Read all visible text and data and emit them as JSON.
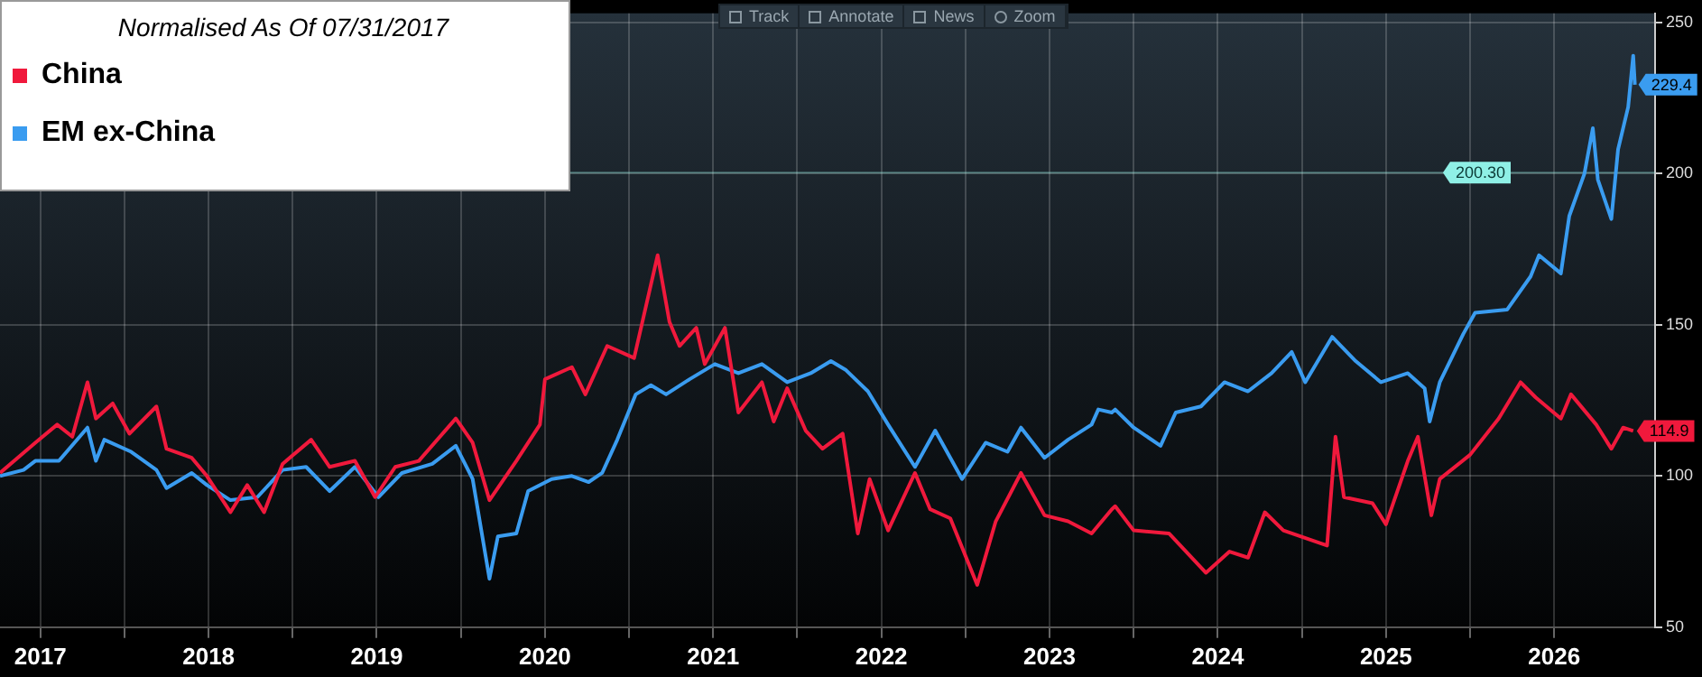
{
  "chart_data": {
    "type": "line",
    "legend_title": "Normalised As Of 07/31/2017",
    "legend": "top left",
    "grid": true,
    "marker": "none",
    "line_style": "solid",
    "xlim": [
      2017.26,
      2027.1
    ],
    "xticks": [
      {
        "value": 2017.5,
        "label": "2017"
      },
      {
        "value": 2018,
        "label": null
      },
      {
        "value": 2018.5,
        "label": "2018"
      },
      {
        "value": 2019,
        "label": null
      },
      {
        "value": 2019.5,
        "label": "2019"
      },
      {
        "value": 2020,
        "label": null
      },
      {
        "value": 2020.5,
        "label": "2020"
      },
      {
        "value": 2021,
        "label": null
      },
      {
        "value": 2021.5,
        "label": "2021"
      },
      {
        "value": 2022,
        "label": null
      },
      {
        "value": 2022.5,
        "label": "2022"
      },
      {
        "value": 2023,
        "label": null
      },
      {
        "value": 2023.5,
        "label": "2023"
      },
      {
        "value": 2024,
        "label": null
      },
      {
        "value": 2024.5,
        "label": "2024"
      },
      {
        "value": 2025,
        "label": null
      },
      {
        "value": 2025.5,
        "label": "2025"
      },
      {
        "value": 2026,
        "label": null
      },
      {
        "value": 2026.5,
        "label": "2026"
      }
    ],
    "ylim": [
      50,
      253
    ],
    "yticks": [
      50,
      100,
      150,
      200,
      250
    ],
    "ref_lines": [
      {
        "axis": "y",
        "value": 200.3,
        "label": "200.30",
        "color": "#8ff0e6"
      }
    ],
    "annotations": [
      "Track",
      "Annotate",
      "News",
      "Zoom",
      {
        "text": "229.4",
        "x": 2026.98,
        "y": 229.4
      },
      {
        "text": "114.9",
        "x": 2026.97,
        "y": 114.9
      }
    ],
    "series": [
      {
        "name": "China",
        "color": "#f0193c",
        "x": [
          2017.26,
          2017.47,
          2017.6,
          2017.69,
          2017.78,
          2017.83,
          2017.93,
          2018.03,
          2018.19,
          2018.25,
          2018.4,
          2018.49,
          2018.63,
          2018.73,
          2018.83,
          2018.94,
          2019.11,
          2019.22,
          2019.37,
          2019.49,
          2019.61,
          2019.75,
          2019.97,
          2020.07,
          2020.17,
          2020.33,
          2020.47,
          2020.5,
          2020.66,
          2020.74,
          2020.87,
          2021.03,
          2021.17,
          2021.24,
          2021.3,
          2021.4,
          2021.45,
          2021.57,
          2021.65,
          2021.79,
          2021.86,
          2021.94,
          2022.05,
          2022.15,
          2022.27,
          2022.36,
          2022.43,
          2022.54,
          2022.7,
          2022.79,
          2022.91,
          2023.07,
          2023.18,
          2023.33,
          2023.47,
          2023.61,
          2023.75,
          2023.87,
          2023.89,
          2024.0,
          2024.21,
          2024.43,
          2024.57,
          2024.68,
          2024.78,
          2024.89,
          2025.15,
          2025.2,
          2025.25,
          2025.42,
          2025.5,
          2025.63,
          2025.69,
          2025.77,
          2025.82,
          2026.0,
          2026.17,
          2026.3,
          2026.39,
          2026.54,
          2026.6,
          2026.75,
          2026.84,
          2026.91,
          2026.97
        ],
        "values": [
          101,
          111,
          117,
          113,
          131,
          119,
          124,
          114,
          123,
          109,
          106,
          100,
          88,
          97,
          88,
          104,
          112,
          103,
          105,
          93,
          103,
          105,
          119,
          111,
          92,
          105,
          117,
          132,
          136,
          127,
          143,
          139,
          173,
          151,
          143,
          149,
          137,
          149,
          121,
          131,
          118,
          129,
          115,
          109,
          114,
          81,
          99,
          82,
          101,
          89,
          86,
          64,
          85,
          101,
          87,
          85,
          81,
          89,
          90,
          82,
          81,
          68,
          75,
          73,
          88,
          82,
          77,
          113,
          93,
          91,
          84,
          105,
          113,
          87,
          99,
          107,
          119,
          131,
          126,
          119,
          127,
          117,
          109,
          116,
          114.9
        ]
      },
      {
        "name": "EM ex-China",
        "color": "#3a9cf0",
        "x": [
          2017.26,
          2017.4,
          2017.47,
          2017.61,
          2017.78,
          2017.83,
          2017.88,
          2018.04,
          2018.19,
          2018.25,
          2018.4,
          2018.49,
          2018.63,
          2018.79,
          2018.94,
          2019.08,
          2019.22,
          2019.37,
          2019.51,
          2019.65,
          2019.83,
          2019.97,
          2020.07,
          2020.17,
          2020.22,
          2020.33,
          2020.4,
          2020.54,
          2020.66,
          2020.76,
          2020.84,
          2020.93,
          2021.04,
          2021.13,
          2021.22,
          2021.36,
          2021.51,
          2021.65,
          2021.79,
          2021.94,
          2022.08,
          2022.2,
          2022.29,
          2022.42,
          2022.54,
          2022.7,
          2022.82,
          2022.98,
          2023.12,
          2023.25,
          2023.33,
          2023.47,
          2023.61,
          2023.75,
          2023.79,
          2023.87,
          2023.89,
          2024.0,
          2024.16,
          2024.25,
          2024.4,
          2024.54,
          2024.68,
          2024.82,
          2024.94,
          2025.02,
          2025.18,
          2025.32,
          2025.47,
          2025.63,
          2025.73,
          2025.76,
          2025.82,
          2025.96,
          2026.03,
          2026.22,
          2026.36,
          2026.41,
          2026.54,
          2026.59,
          2026.68,
          2026.73,
          2026.76,
          2026.84,
          2026.88,
          2026.94,
          2026.97,
          2026.98
        ],
        "values": [
          100,
          102,
          105,
          105,
          116,
          105,
          112,
          108,
          102,
          96,
          101,
          97,
          92,
          93,
          102,
          103,
          95,
          103,
          93,
          101,
          104,
          110,
          99,
          66,
          80,
          81,
          95,
          99,
          100,
          98,
          101,
          112,
          127,
          130,
          127,
          132,
          137,
          134,
          137,
          131,
          134,
          138,
          135,
          128,
          117,
          103,
          115,
          99,
          111,
          108,
          116,
          106,
          112,
          117,
          122,
          121,
          122,
          116,
          110,
          121,
          123,
          131,
          128,
          134,
          141,
          131,
          146,
          138,
          131,
          134,
          129,
          118,
          131,
          147,
          154,
          155,
          166,
          173,
          167,
          186,
          200,
          215,
          198,
          185,
          208,
          222,
          239,
          229.4
        ]
      }
    ]
  }
}
